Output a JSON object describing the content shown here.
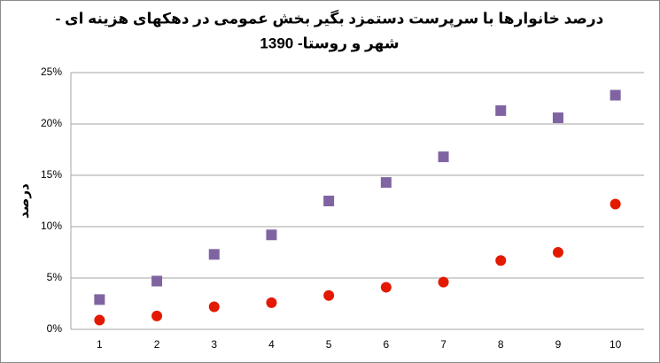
{
  "chart_data": {
    "type": "scatter",
    "title": [
      "درصد خانوارها با سرپرست دستمزد بگیر بخش عمومی در دهکهای هزینه ای -",
      "شهر و روستا- 1390"
    ],
    "y_label": "درصد",
    "categories": [
      1,
      2,
      3,
      4,
      5,
      6,
      7,
      8,
      9,
      10
    ],
    "series": [
      {
        "color": "#8064a2",
        "marker": "square",
        "values": [
          2.9,
          4.7,
          7.3,
          9.2,
          12.5,
          14.3,
          16.8,
          21.3,
          20.6,
          22.8
        ]
      },
      {
        "color": "#e31a00",
        "marker": "circle",
        "values": [
          0.9,
          1.3,
          2.2,
          2.6,
          3.3,
          4.1,
          4.6,
          6.7,
          7.5,
          12.2
        ]
      }
    ],
    "ylim": [
      0,
      25
    ],
    "yticks": [
      {
        "value": 0,
        "label": "0%"
      },
      {
        "value": 5,
        "label": "5%"
      },
      {
        "value": 10,
        "label": "10%"
      },
      {
        "value": 15,
        "label": "15%"
      },
      {
        "value": 20,
        "label": "20%"
      },
      {
        "value": 25,
        "label": "25%"
      }
    ],
    "grid": true
  }
}
